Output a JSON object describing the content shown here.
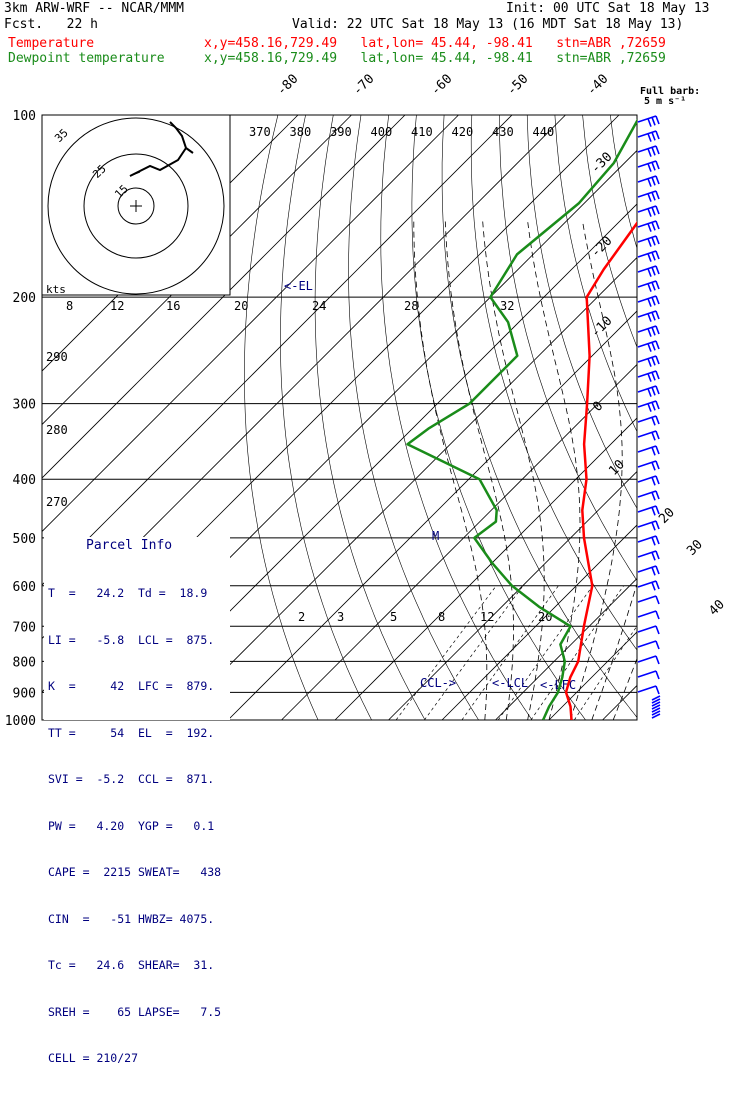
{
  "header": {
    "model": "3km ARW-WRF -- NCAR/MMM",
    "init": "Init: 00 UTC Sat 18 May 13",
    "fcst": "Fcst.   22 h",
    "valid": "Valid: 22 UTC Sat 18 May 13 (16 MDT Sat 18 May 13)",
    "temp_label": "Temperature",
    "temp_loc": "x,y=458.16,729.49   lat,lon= 45.44, -98.41   stn=ABR ,72659",
    "dew_label": "Dewpoint temperature",
    "dew_loc": "x,y=458.16,729.49   lat,lon= 45.44, -98.41   stn=ABR ,72659"
  },
  "colors": {
    "temperature": "#ff0000",
    "dewpoint": "#1a8c1a",
    "annotation": "#00007f"
  },
  "barb_legend": {
    "title": "Full barb:",
    "value": "5 m s⁻¹"
  },
  "parcel_info": {
    "title": "Parcel Info",
    "rows": [
      "T  =   24.2  Td =  18.9",
      "LI =   -5.8  LCL =  875.",
      "K  =     42  LFC =  879.",
      "TT =     54  EL  =  192.",
      "SVI =  -5.2  CCL =  871.",
      "PW =   4.20  YGP =   0.1",
      "CAPE =  2215 SWEAT=   438",
      "CIN  =   -51 HWBZ= 4075.",
      "Tc =   24.6  SHEAR=  31.",
      "SREH =    65 LAPSE=   7.5",
      "CELL = 210/27"
    ]
  },
  "hodograph": {
    "units": "kts",
    "ring_labels": [
      "35",
      "25",
      "15"
    ]
  },
  "chart_data": {
    "type": "line",
    "title": "",
    "pressure_levels": [
      "100",
      "200",
      "300",
      "400",
      "500",
      "600",
      "700",
      "800",
      "900",
      "1000"
    ],
    "isotherm_labels": [
      "-80",
      "-70",
      "-60",
      "-50",
      "-40",
      "-30",
      "-20",
      "-10",
      "0",
      "10",
      "20",
      "30",
      "40"
    ],
    "theta_labels": [
      "370",
      "380",
      "390",
      "400",
      "410",
      "420",
      "430",
      "440"
    ],
    "mixing_ratio_labels_top": [
      "8",
      "12",
      "16",
      "20",
      "24",
      "28",
      "32"
    ],
    "mixing_ratio_labels_bottom": [
      "2",
      "3",
      "5",
      "8",
      "12",
      "20"
    ],
    "theta_labels_left": [
      "290",
      "280",
      "270"
    ],
    "annotations": [
      "<-EL",
      "M",
      "CCL->",
      "<-LCL",
      "<-LFC"
    ],
    "series": [
      {
        "name": "Temperature",
        "points": [
          [
            1000,
            24.2
          ],
          [
            950,
            21.5
          ],
          [
            900,
            18.0
          ],
          [
            850,
            16.0
          ],
          [
            800,
            14.5
          ],
          [
            700,
            9.0
          ],
          [
            600,
            3.0
          ],
          [
            500,
            -7.5
          ],
          [
            450,
            -13.0
          ],
          [
            400,
            -18.0
          ],
          [
            350,
            -25.0
          ],
          [
            300,
            -32.0
          ],
          [
            250,
            -40.5
          ],
          [
            200,
            -52.0
          ],
          [
            180,
            -54.0
          ],
          [
            150,
            -56.5
          ],
          [
            130,
            -55.5
          ],
          [
            115,
            -57.0
          ],
          [
            100,
            -58.5
          ]
        ]
      },
      {
        "name": "Dewpoint temperature",
        "points": [
          [
            1000,
            18.9
          ],
          [
            950,
            17.5
          ],
          [
            900,
            16.5
          ],
          [
            850,
            14.5
          ],
          [
            800,
            12.0
          ],
          [
            750,
            8.0
          ],
          [
            700,
            6.5
          ],
          [
            650,
            -3.0
          ],
          [
            600,
            -12.0
          ],
          [
            550,
            -20.0
          ],
          [
            500,
            -28.0
          ],
          [
            470,
            -27.0
          ],
          [
            450,
            -29.0
          ],
          [
            400,
            -38.0
          ],
          [
            350,
            -58.0
          ],
          [
            330,
            -57.0
          ],
          [
            300,
            -54.0
          ],
          [
            250,
            -54.0
          ],
          [
            220,
            -62.0
          ],
          [
            200,
            -70.0
          ],
          [
            170,
            -73.0
          ],
          [
            140,
            -71.0
          ],
          [
            120,
            -72.0
          ],
          [
            100,
            -76.0
          ]
        ]
      }
    ]
  }
}
